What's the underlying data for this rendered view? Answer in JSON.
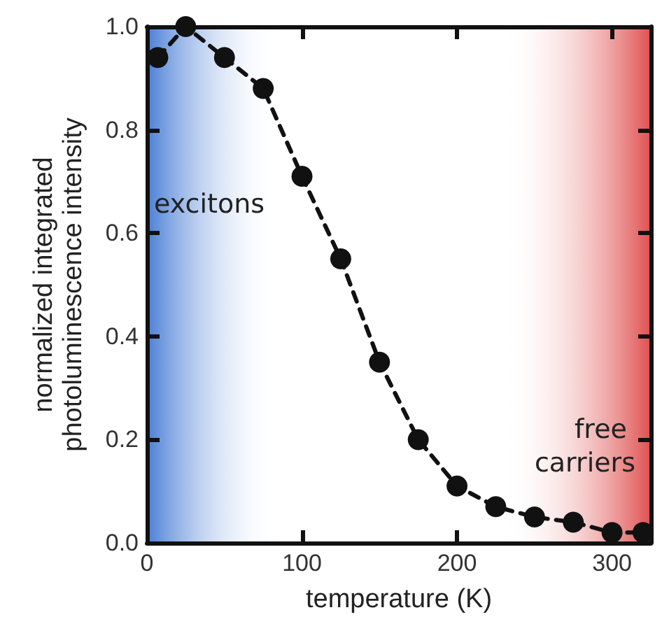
{
  "chart_data": {
    "type": "line",
    "xlabel": "temperature (K)",
    "ylabel": "normalized integrated\nphotoluminescence intensity",
    "x": [
      7,
      25,
      50,
      75,
      100,
      125,
      150,
      175,
      200,
      225,
      250,
      275,
      300,
      320
    ],
    "series": [
      {
        "color": "#111111",
        "values": [
          0.94,
          1.0,
          0.94,
          0.88,
          0.71,
          0.55,
          0.35,
          0.2,
          0.11,
          0.07,
          0.05,
          0.04,
          0.02,
          0.02
        ]
      }
    ],
    "xlim": [
      0,
      325
    ],
    "xticks": [
      0,
      100,
      200,
      300
    ],
    "ylim": [
      0,
      1
    ],
    "yticks": [
      {
        "value": 0,
        "label": "0.0"
      },
      {
        "value": 0.2,
        "label": "0.2"
      },
      {
        "value": 0.4,
        "label": "0.4"
      },
      {
        "value": 0.6,
        "label": "0.6"
      },
      {
        "value": 0.8,
        "label": "0.8"
      },
      {
        "value": 1,
        "label": "1.0"
      }
    ],
    "bands": [
      {
        "axis": "x",
        "from": 0,
        "to": 85,
        "color": "#4a7fd6",
        "label": "excitons"
      },
      {
        "axis": "x",
        "from": 230,
        "to": 325,
        "color": "#e05050",
        "label": "free carriers"
      }
    ],
    "marker": "circle",
    "line_style": "dashed"
  }
}
